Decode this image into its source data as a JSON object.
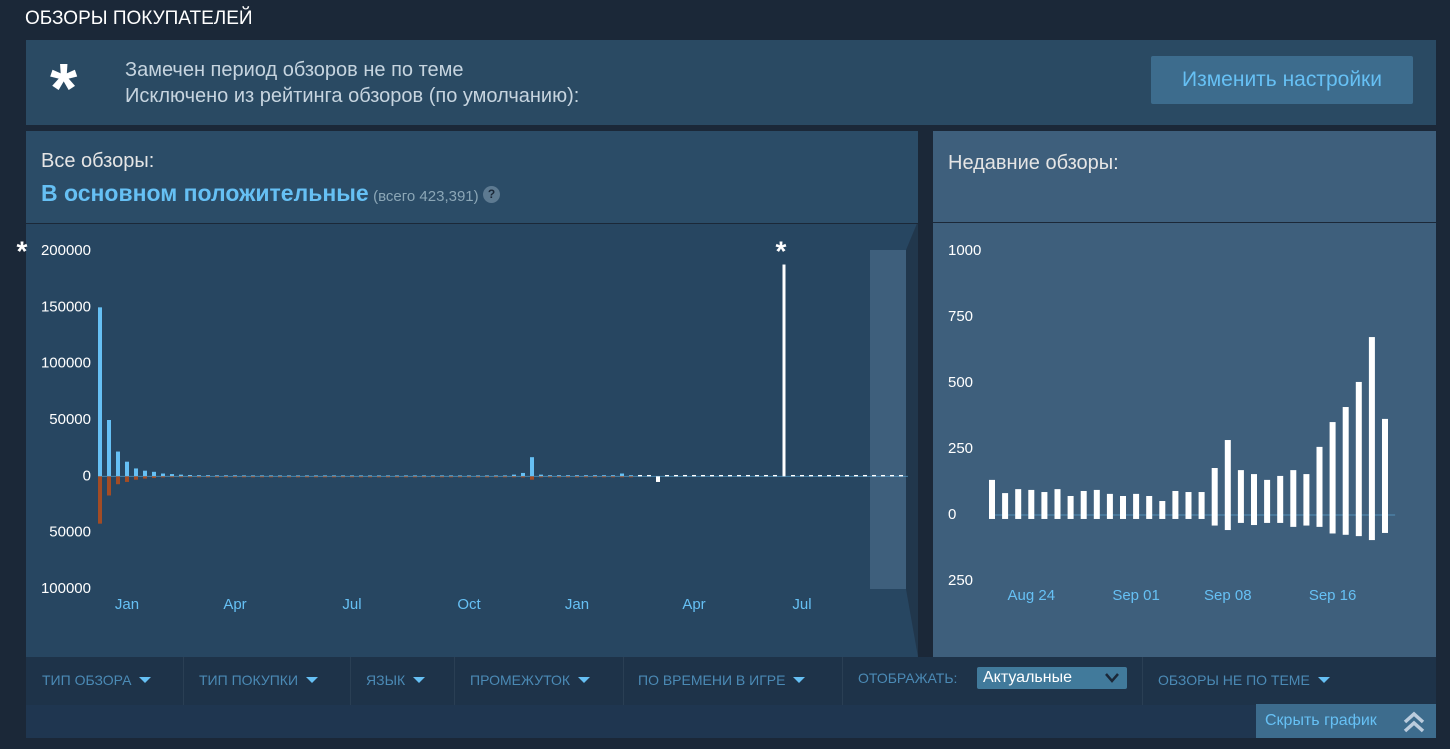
{
  "header": {
    "title": "ОБЗОРЫ ПОКУПАТЕЛЕЙ"
  },
  "notice": {
    "icon": "*",
    "lines": [
      "Замечен период обзоров не по теме",
      "Исключено из рейтинга обзоров (по умолчанию):"
    ],
    "button": "Изменить настройки"
  },
  "overall": {
    "label": "Все обзоры:",
    "rating": "В основном положительные",
    "total": "(всего 423,391)",
    "help": "?"
  },
  "recent": {
    "label": "Недавние обзоры:"
  },
  "chart_data": [
    {
      "type": "bar",
      "categories": [
        null,
        null,
        null,
        "Jan",
        null,
        null,
        null,
        null,
        null,
        null,
        null,
        null,
        null,
        null,
        null,
        "Apr",
        null,
        null,
        null,
        null,
        null,
        null,
        null,
        null,
        null,
        null,
        null,
        null,
        "Jul",
        null,
        null,
        null,
        null,
        null,
        null,
        null,
        null,
        null,
        null,
        null,
        null,
        "Oct",
        null,
        null,
        null,
        null,
        null,
        null,
        null,
        null,
        null,
        null,
        null,
        "Jan",
        null,
        null,
        null,
        null,
        null,
        null,
        null,
        null,
        null,
        null,
        null,
        null,
        "Apr",
        null,
        null,
        null,
        null,
        null,
        null,
        null,
        null,
        null,
        null,
        null,
        "Jul",
        null,
        null,
        null,
        null,
        null,
        null,
        null,
        null,
        null,
        null,
        null
      ],
      "series": [
        {
          "color": "#66c0f4",
          "values": [
            150000,
            50000,
            22000,
            13000,
            7000,
            5000,
            4000,
            2500,
            2000,
            1500,
            1200,
            1000,
            1000,
            900,
            900,
            900,
            800,
            800,
            800,
            800,
            800,
            800,
            800,
            800,
            800,
            800,
            800,
            800,
            800,
            800,
            800,
            800,
            800,
            800,
            800,
            800,
            800,
            800,
            800,
            800,
            800,
            800,
            800,
            800,
            800,
            800,
            1500,
            3000,
            17000,
            1500,
            1000,
            1000,
            1000,
            1000,
            1000,
            1000,
            1000,
            1000,
            2500,
            1000,
            null,
            null,
            null,
            null,
            null,
            null,
            null,
            null,
            null,
            null,
            null,
            null,
            null,
            null,
            null,
            null,
            null,
            null,
            null,
            null,
            null,
            null,
            null,
            null,
            null,
            null,
            null,
            null,
            null,
            null
          ]
        },
        {
          "color": "#a34c25",
          "values": [
            -42000,
            -17000,
            -7000,
            -5000,
            -3000,
            -2000,
            -1500,
            -1000,
            -800,
            -700,
            -600,
            -600,
            -600,
            -600,
            -600,
            -600,
            -600,
            -600,
            -600,
            -600,
            -500,
            -500,
            -500,
            -500,
            -500,
            -500,
            -500,
            -500,
            -500,
            -500,
            -500,
            -500,
            -500,
            -500,
            -500,
            -500,
            -500,
            -500,
            -500,
            -500,
            -500,
            -500,
            -500,
            -500,
            -500,
            -500,
            -500,
            -1000,
            -3000,
            -800,
            -500,
            -500,
            -500,
            -500,
            -500,
            -500,
            -500,
            -500,
            -500,
            -500,
            null,
            null,
            null,
            null,
            null,
            null,
            null,
            null,
            null,
            null,
            null,
            null,
            null,
            null,
            null,
            null,
            null,
            null,
            null,
            null,
            null,
            null,
            null,
            null,
            null,
            null,
            null,
            null,
            null,
            null
          ]
        },
        {
          "color": "#ffffff",
          "values": [
            null,
            null,
            null,
            null,
            null,
            null,
            null,
            null,
            null,
            null,
            null,
            null,
            null,
            null,
            null,
            null,
            null,
            null,
            null,
            null,
            null,
            null,
            null,
            null,
            null,
            null,
            null,
            null,
            null,
            null,
            null,
            null,
            null,
            null,
            null,
            null,
            null,
            null,
            null,
            null,
            null,
            null,
            null,
            null,
            null,
            null,
            null,
            null,
            null,
            null,
            null,
            null,
            null,
            null,
            null,
            null,
            null,
            null,
            null,
            null,
            1200,
            1200,
            -5000,
            1200,
            1200,
            1200,
            1200,
            1200,
            1200,
            1200,
            1200,
            1200,
            1200,
            1200,
            1200,
            1200,
            188000,
            1200,
            1200,
            1200,
            1200,
            1200,
            1200,
            1200,
            1200,
            1200,
            1200,
            1200,
            1200,
            1200
          ]
        }
      ],
      "ylim": [
        -100000,
        200000
      ],
      "yticks": [
        200000,
        150000,
        100000,
        50000,
        0,
        {
          "value": -50000,
          "label": "50000"
        },
        {
          "value": -100000,
          "label": "100000"
        }
      ],
      "annotations": [
        "*",
        "*"
      ]
    },
    {
      "type": "bar",
      "categories": [
        null,
        null,
        null,
        "Aug 24",
        null,
        null,
        null,
        null,
        null,
        null,
        null,
        "Sep 01",
        null,
        null,
        null,
        null,
        null,
        null,
        "Sep 08",
        null,
        null,
        null,
        null,
        null,
        null,
        null,
        "Sep 16",
        null,
        null,
        null,
        null
      ],
      "series": [
        {
          "color": "#ffffff",
          "values": [
            133,
            83,
            98,
            95,
            87,
            98,
            72,
            91,
            95,
            80,
            72,
            80,
            72,
            53,
            91,
            87,
            87,
            178,
            284,
            170,
            155,
            133,
            148,
            170,
            155,
            258,
            352,
            409,
            504,
            674,
            364
          ]
        },
        {
          "color": "#ffffff",
          "values": [
            -15,
            -15,
            -15,
            -15,
            -15,
            -15,
            -15,
            -15,
            -15,
            -15,
            -15,
            -15,
            -15,
            -15,
            -15,
            -15,
            -15,
            -40,
            -57,
            -30,
            -38,
            -30,
            -30,
            -45,
            -40,
            -45,
            -70,
            -75,
            -80,
            -95,
            -68
          ]
        }
      ],
      "ylim": [
        -250,
        1000
      ],
      "yticks": [
        1000,
        750,
        500,
        250,
        0,
        {
          "value": -250,
          "label": "250"
        }
      ]
    }
  ],
  "filters": [
    "ТИП ОБЗОРА",
    "ТИП ПОКУПКИ",
    "ЯЗЫК",
    "ПРОМЕЖУТОК",
    "ПО ВРЕМЕНИ В ИГРЕ"
  ],
  "display": {
    "label": "ОТОБРАЖАТЬ:",
    "value": "Актуальные"
  },
  "offtopic_filter": "ОБЗОРЫ НЕ ПО ТЕМЕ",
  "hide_button": "Скрыть график"
}
